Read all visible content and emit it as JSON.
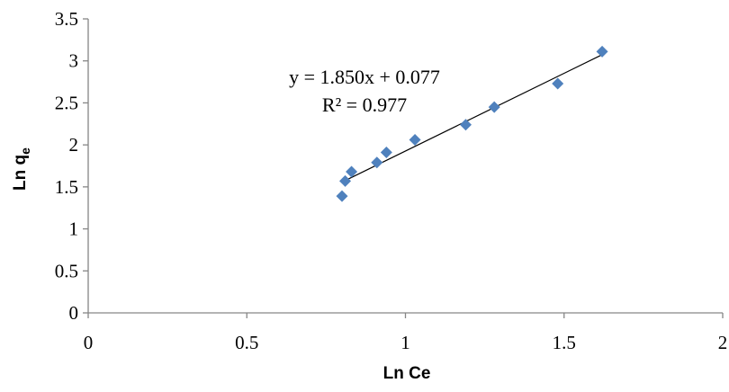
{
  "chart_data": {
    "type": "scatter",
    "xlabel": "Ln Ce",
    "ylabel": {
      "main": "Ln q",
      "subscript": "e"
    },
    "xlim": [
      0,
      2
    ],
    "ylim": [
      0,
      3.5
    ],
    "xticks": [
      "0",
      "0.5",
      "1",
      "1.5",
      "2"
    ],
    "yticks": [
      "0",
      "0.5",
      "1",
      "1.5",
      "2",
      "2.5",
      "3",
      "3.5"
    ],
    "grid": false,
    "series": [
      {
        "marker": "diamond",
        "color": "#4F81BD",
        "x": [
          0.8,
          0.81,
          0.83,
          0.91,
          0.94,
          1.03,
          1.19,
          1.28,
          1.48,
          1.62
        ],
        "y": [
          1.39,
          1.57,
          1.68,
          1.79,
          1.91,
          2.06,
          2.24,
          2.45,
          2.73,
          3.11
        ]
      }
    ],
    "trendline": {
      "slope": 1.85,
      "intercept": 0.077,
      "x_range": [
        0.81,
        1.62
      ],
      "color": "#000000"
    },
    "annotations": {
      "equation": "y = 1.850x + 0.077",
      "r_squared": "R² = 0.977"
    }
  }
}
